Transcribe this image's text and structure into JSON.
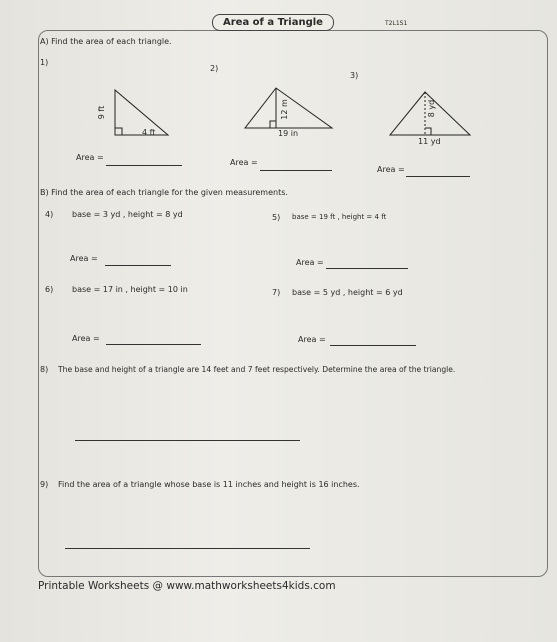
{
  "header": {
    "title": "Area of a Triangle",
    "code": "T2L1S1"
  },
  "section_a": {
    "instruction": "A)  Find the area of each triangle.",
    "problems": [
      {
        "number": "1)",
        "height": "9 ft",
        "base": "4 ft",
        "answer": "Area ="
      },
      {
        "number": "2)",
        "height": "12 m",
        "base": "19 in",
        "answer": "Area ="
      },
      {
        "number": "3)",
        "height": "8 yd",
        "base": "11 yd",
        "answer": "Area ="
      }
    ]
  },
  "section_b": {
    "instruction": "B)  Find the area of each triangle for the given measurements.",
    "problems": [
      {
        "number": "4)",
        "text": "base = 3 yd , height = 8 yd",
        "answer": "Area ="
      },
      {
        "number": "5)",
        "text": "base = 19 ft , height = 4 ft",
        "answer": "Area ="
      },
      {
        "number": "6)",
        "text": "base = 17 in , height = 10 in",
        "answer": "Area ="
      },
      {
        "number": "7)",
        "text": "base = 5 yd , height = 6 yd",
        "answer": "Area ="
      }
    ]
  },
  "word_problems": [
    {
      "number": "8)",
      "text": "The base and height of a triangle are 14 feet and 7 feet respectively. Determine the area of the triangle."
    },
    {
      "number": "9)",
      "text": "Find the area of a triangle whose base is 11 inches and height is 16 inches."
    }
  ],
  "footer": "Printable Worksheets @ www.mathworksheets4kids.com"
}
